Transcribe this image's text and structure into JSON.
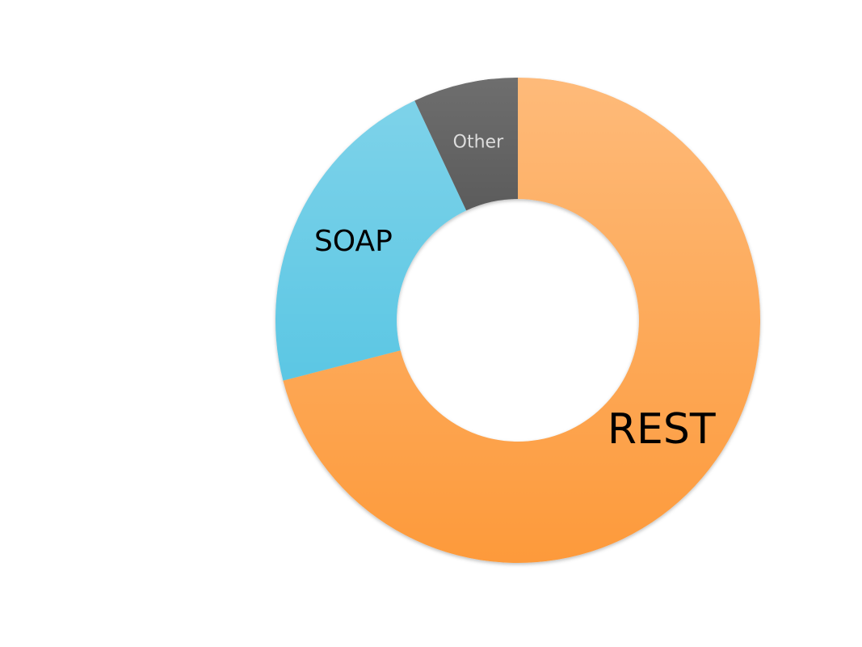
{
  "chart_data": {
    "type": "donut",
    "categories": [
      "REST",
      "SOAP",
      "Other"
    ],
    "values": [
      71,
      22,
      7
    ],
    "colors": [
      "#fd9a3a",
      "#45bfe0",
      "#2a2a2a"
    ]
  }
}
